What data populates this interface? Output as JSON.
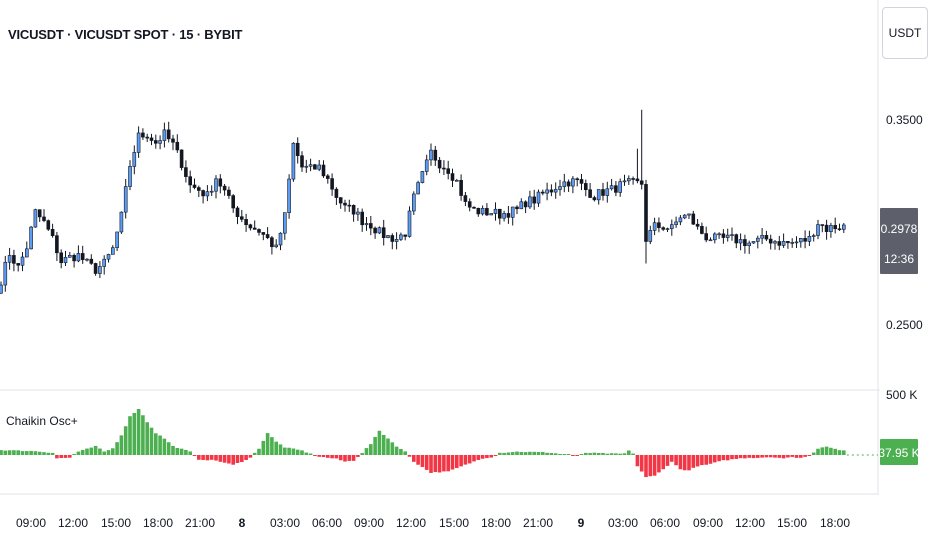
{
  "header": {
    "title": "VICUSDT · VICUSDT SPOT · 15 · BYBIT"
  },
  "currency_button": "USDT",
  "price_axis": {
    "ticks": [
      {
        "label": "0.3500",
        "value": 0.35
      },
      {
        "label": "0.2500",
        "value": 0.25
      }
    ],
    "last_price_label": "0.2978",
    "countdown_label": "12:36"
  },
  "indicator": {
    "label": "Chaikin Osc+",
    "axis_label": "500 K",
    "last_value_label": "37.95 K",
    "colors": {
      "positive": "#4caf50",
      "negative": "#f23645"
    }
  },
  "time_axis": {
    "labels": [
      "09:00",
      "12:00",
      "15:00",
      "18:00",
      "21:00",
      "8",
      "03:00",
      "06:00",
      "09:00",
      "12:00",
      "15:00",
      "18:00",
      "21:00",
      "9",
      "03:00",
      "06:00",
      "09:00",
      "12:00",
      "15:00",
      "18:00"
    ],
    "bold": [
      "8",
      "9"
    ]
  },
  "colors": {
    "up": "#5b9cf6",
    "down": "#131722",
    "badge_bg": "#5d606b",
    "badge_ind": "#4caf50"
  },
  "chart_data": [
    {
      "type": "candlestick",
      "title": "VICUSDT · VICUSDT SPOT · 15 · BYBIT",
      "x_labels": [
        "09:00",
        "12:00",
        "15:00",
        "18:00",
        "21:00",
        "8",
        "03:00",
        "06:00",
        "09:00",
        "12:00",
        "15:00",
        "18:00",
        "21:00",
        "9",
        "03:00",
        "06:00",
        "09:00",
        "12:00",
        "15:00",
        "18:00"
      ],
      "y_unit": "USDT",
      "ylim": [
        0.24,
        0.37
      ],
      "close_path": [
        [
          0,
          0.272
        ],
        [
          2,
          0.285
        ],
        [
          4,
          0.278
        ],
        [
          6,
          0.288
        ],
        [
          8,
          0.305
        ],
        [
          10,
          0.3
        ],
        [
          12,
          0.292
        ],
        [
          14,
          0.281
        ],
        [
          16,
          0.283
        ],
        [
          18,
          0.284
        ],
        [
          20,
          0.28
        ],
        [
          22,
          0.277
        ],
        [
          24,
          0.28
        ],
        [
          26,
          0.287
        ],
        [
          28,
          0.303
        ],
        [
          30,
          0.328
        ],
        [
          32,
          0.342
        ],
        [
          34,
          0.343
        ],
        [
          36,
          0.339
        ],
        [
          38,
          0.343
        ],
        [
          40,
          0.338
        ],
        [
          42,
          0.329
        ],
        [
          44,
          0.318
        ],
        [
          46,
          0.316
        ],
        [
          48,
          0.313
        ],
        [
          50,
          0.322
        ],
        [
          52,
          0.315
        ],
        [
          54,
          0.307
        ],
        [
          56,
          0.302
        ],
        [
          58,
          0.298
        ],
        [
          60,
          0.296
        ],
        [
          62,
          0.292
        ],
        [
          64,
          0.287
        ],
        [
          66,
          0.303
        ],
        [
          68,
          0.338
        ],
        [
          70,
          0.327
        ],
        [
          72,
          0.326
        ],
        [
          74,
          0.327
        ],
        [
          76,
          0.321
        ],
        [
          78,
          0.313
        ],
        [
          80,
          0.307
        ],
        [
          82,
          0.306
        ],
        [
          84,
          0.301
        ],
        [
          86,
          0.299
        ],
        [
          88,
          0.295
        ],
        [
          90,
          0.293
        ],
        [
          92,
          0.292
        ],
        [
          94,
          0.295
        ],
        [
          96,
          0.312
        ],
        [
          98,
          0.323
        ],
        [
          100,
          0.334
        ],
        [
          102,
          0.329
        ],
        [
          104,
          0.326
        ],
        [
          106,
          0.32
        ],
        [
          108,
          0.309
        ],
        [
          110,
          0.306
        ],
        [
          112,
          0.305
        ],
        [
          114,
          0.305
        ],
        [
          116,
          0.304
        ],
        [
          118,
          0.305
        ],
        [
          120,
          0.306
        ],
        [
          122,
          0.31
        ],
        [
          124,
          0.311
        ],
        [
          126,
          0.314
        ],
        [
          128,
          0.316
        ],
        [
          130,
          0.319
        ],
        [
          132,
          0.32
        ],
        [
          134,
          0.32
        ],
        [
          136,
          0.316
        ],
        [
          138,
          0.313
        ],
        [
          140,
          0.315
        ],
        [
          142,
          0.316
        ],
        [
          144,
          0.318
        ],
        [
          146,
          0.319
        ],
        [
          148,
          0.319
        ],
        [
          149,
          0.319
        ],
        [
          150,
          0.292
        ],
        [
          152,
          0.298
        ],
        [
          154,
          0.298
        ],
        [
          156,
          0.297
        ],
        [
          158,
          0.303
        ],
        [
          160,
          0.303
        ],
        [
          162,
          0.297
        ],
        [
          164,
          0.293
        ],
        [
          166,
          0.292
        ],
        [
          168,
          0.292
        ],
        [
          170,
          0.292
        ],
        [
          172,
          0.291
        ],
        [
          174,
          0.29
        ],
        [
          176,
          0.291
        ],
        [
          178,
          0.292
        ],
        [
          180,
          0.291
        ],
        [
          182,
          0.29
        ],
        [
          184,
          0.29
        ],
        [
          186,
          0.291
        ],
        [
          188,
          0.292
        ],
        [
          190,
          0.3
        ],
        [
          192,
          0.297
        ],
        [
          194,
          0.298
        ],
        [
          196,
          0.298
        ]
      ]
    },
    {
      "type": "bar",
      "title": "Chaikin Osc+",
      "y_unit": "K",
      "last_value": 37.95,
      "values_path": [
        [
          0,
          45
        ],
        [
          4,
          40
        ],
        [
          8,
          35
        ],
        [
          12,
          20
        ],
        [
          13,
          -30
        ],
        [
          16,
          -25
        ],
        [
          18,
          30
        ],
        [
          22,
          80
        ],
        [
          24,
          30
        ],
        [
          26,
          60
        ],
        [
          28,
          180
        ],
        [
          30,
          350
        ],
        [
          32,
          420
        ],
        [
          34,
          300
        ],
        [
          36,
          200
        ],
        [
          38,
          150
        ],
        [
          40,
          80
        ],
        [
          44,
          30
        ],
        [
          46,
          -40
        ],
        [
          50,
          -50
        ],
        [
          54,
          -90
        ],
        [
          56,
          -60
        ],
        [
          58,
          -25
        ],
        [
          60,
          60
        ],
        [
          62,
          200
        ],
        [
          64,
          120
        ],
        [
          66,
          70
        ],
        [
          70,
          40
        ],
        [
          72,
          10
        ],
        [
          74,
          -15
        ],
        [
          78,
          -35
        ],
        [
          80,
          -60
        ],
        [
          82,
          -50
        ],
        [
          84,
          20
        ],
        [
          86,
          100
        ],
        [
          88,
          220
        ],
        [
          90,
          150
        ],
        [
          92,
          80
        ],
        [
          94,
          30
        ],
        [
          96,
          -60
        ],
        [
          100,
          -160
        ],
        [
          104,
          -150
        ],
        [
          108,
          -90
        ],
        [
          112,
          -30
        ],
        [
          114,
          -20
        ],
        [
          116,
          20
        ],
        [
          120,
          30
        ],
        [
          126,
          25
        ],
        [
          128,
          20
        ],
        [
          130,
          10
        ],
        [
          132,
          5
        ],
        [
          134,
          -10
        ],
        [
          136,
          20
        ],
        [
          140,
          15
        ],
        [
          144,
          10
        ],
        [
          145,
          15
        ],
        [
          146,
          40
        ],
        [
          147,
          10
        ],
        [
          148,
          -100
        ],
        [
          150,
          -200
        ],
        [
          152,
          -190
        ],
        [
          154,
          -130
        ],
        [
          156,
          -60
        ],
        [
          158,
          -130
        ],
        [
          160,
          -140
        ],
        [
          162,
          -100
        ],
        [
          164,
          -90
        ],
        [
          166,
          -70
        ],
        [
          168,
          -50
        ],
        [
          170,
          -40
        ],
        [
          172,
          -30
        ],
        [
          174,
          -25
        ],
        [
          176,
          -25
        ],
        [
          178,
          -20
        ],
        [
          180,
          -20
        ],
        [
          182,
          -30
        ],
        [
          184,
          -20
        ],
        [
          186,
          -25
        ],
        [
          188,
          -10
        ],
        [
          190,
          60
        ],
        [
          192,
          80
        ],
        [
          194,
          55
        ],
        [
          196,
          38
        ]
      ]
    }
  ]
}
